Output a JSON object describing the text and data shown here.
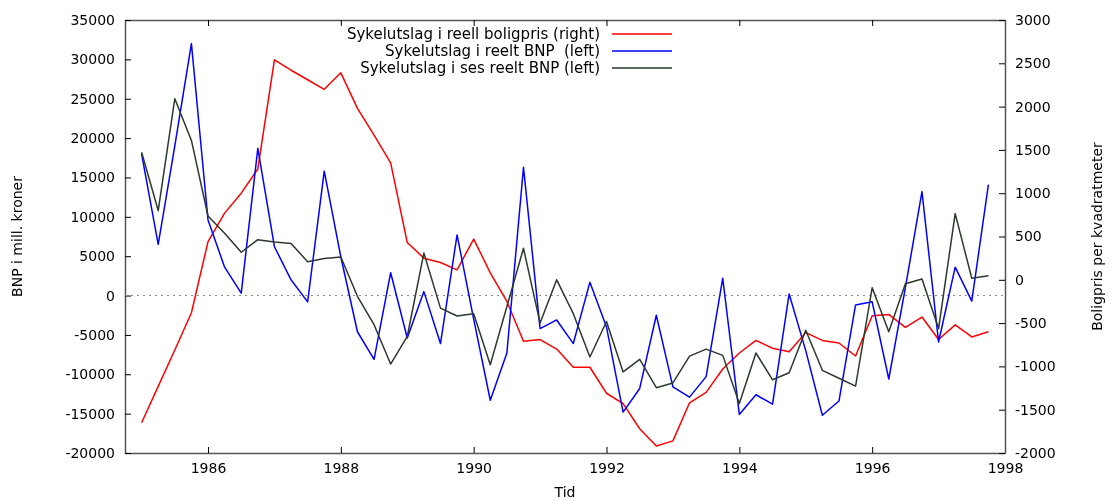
{
  "chart_data": {
    "type": "line",
    "xlabel": "Tid",
    "ylabel": "BNP i mill. kroner",
    "y2label": "Boligpris per kvadratmeter",
    "x": [
      1985,
      1985.25,
      1985.5,
      1985.75,
      1986,
      1986.25,
      1986.5,
      1986.75,
      1987,
      1987.25,
      1987.5,
      1987.75,
      1988,
      1988.25,
      1988.5,
      1988.75,
      1989,
      1989.25,
      1989.5,
      1989.75,
      1990,
      1990.25,
      1990.5,
      1990.75,
      1991,
      1991.25,
      1991.5,
      1991.75,
      1992,
      1992.25,
      1992.5,
      1992.75,
      1993,
      1993.25,
      1993.5,
      1993.75,
      1994,
      1994.25,
      1994.5,
      1994.75,
      1995,
      1995.25,
      1995.5,
      1995.75,
      1996,
      1996.25,
      1996.5,
      1996.75,
      1997,
      1997.25,
      1997.5,
      1997.75
    ],
    "series": [
      {
        "name": "Sykelutslag i reell boligpris (right)",
        "color": "#ff0000",
        "axis": "y2",
        "values": [
          -1650,
          -1230,
          -810,
          -380,
          440,
          770,
          1000,
          1280,
          2540,
          2420,
          2310,
          2200,
          2390,
          1980,
          1670,
          1350,
          430,
          250,
          200,
          115,
          470,
          80,
          -250,
          -710,
          -690,
          -800,
          -1010,
          -1010,
          -1310,
          -1430,
          -1720,
          -1920,
          -1860,
          -1420,
          -1300,
          -1030,
          -845,
          -700,
          -790,
          -830,
          -610,
          -700,
          -730,
          -880,
          -415,
          -400,
          -550,
          -430,
          -690,
          -520,
          -660,
          -600
        ]
      },
      {
        "name": "Sykelutslag i reelt BNP  (left)",
        "color": "#0000ff",
        "values": [
          18000,
          6500,
          19000,
          32000,
          9600,
          3600,
          300,
          18700,
          6200,
          2000,
          -800,
          15800,
          4900,
          -4600,
          -8100,
          2900,
          -5400,
          500,
          -6100,
          7700,
          -3000,
          -13300,
          -7300,
          16300,
          -4200,
          -3100,
          -6100,
          1700,
          -4000,
          -14800,
          -11800,
          -2500,
          -11600,
          -12900,
          -10300,
          2200,
          -15100,
          -12600,
          -13800,
          200,
          -7000,
          -15200,
          -13400,
          -1200,
          -800,
          -10600,
          1000,
          13200,
          -5900,
          3600,
          -700,
          14100
        ]
      },
      {
        "name": "Sykelutslag i ses reelt BNP (left)",
        "color": "#2b3a2b",
        "values": [
          18200,
          10800,
          25000,
          19700,
          10100,
          7900,
          5500,
          7100,
          6800,
          6600,
          4300,
          4700,
          4900,
          -100,
          -3700,
          -8700,
          -5200,
          5400,
          -1600,
          -2600,
          -2300,
          -8800,
          -1400,
          6000,
          -3500,
          2000,
          -2300,
          -7800,
          -3300,
          -9700,
          -8100,
          -11700,
          -11100,
          -7700,
          -6800,
          -7600,
          -13700,
          -7300,
          -10700,
          -9800,
          -4400,
          -9500,
          -10500,
          -11500,
          1000,
          -4600,
          1500,
          2100,
          -4200,
          10400,
          2200,
          2500
        ]
      }
    ],
    "xlim": [
      1984.75,
      1998
    ],
    "xticks": [
      1986,
      1988,
      1990,
      1992,
      1994,
      1996,
      1998
    ],
    "ylim": [
      -20000,
      35000
    ],
    "yticks": [
      -20000,
      -15000,
      -10000,
      -5000,
      0,
      5000,
      10000,
      15000,
      20000,
      25000,
      30000,
      35000
    ],
    "y2lim": [
      -2000,
      3000
    ],
    "y2ticks": [
      -2000,
      -1500,
      -1000,
      -500,
      0,
      500,
      1000,
      1500,
      2000,
      2500,
      3000
    ],
    "ref_lines": [
      {
        "axis": "y",
        "value": 0,
        "color": "#888888",
        "line_style": "dotted"
      }
    ],
    "legend": "top",
    "grid": false,
    "marker": "none",
    "line_style": "solid"
  }
}
